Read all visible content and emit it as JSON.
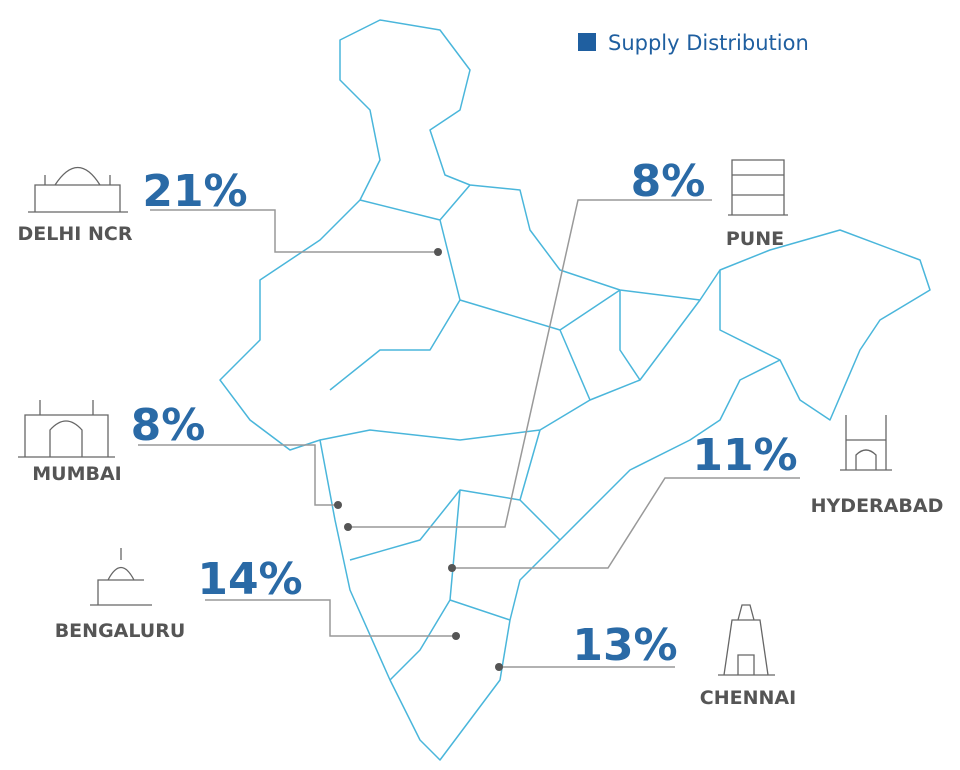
{
  "legend": {
    "label": "Supply Distribution"
  },
  "cities": [
    {
      "name": "DELHI NCR",
      "share": "21%"
    },
    {
      "name": "PUNE",
      "share": "8%"
    },
    {
      "name": "MUMBAI",
      "share": "8%"
    },
    {
      "name": "HYDERABAD",
      "share": "11%"
    },
    {
      "name": "BENGALURU",
      "share": "14%"
    },
    {
      "name": "CHENNAI",
      "share": "13%"
    }
  ]
}
